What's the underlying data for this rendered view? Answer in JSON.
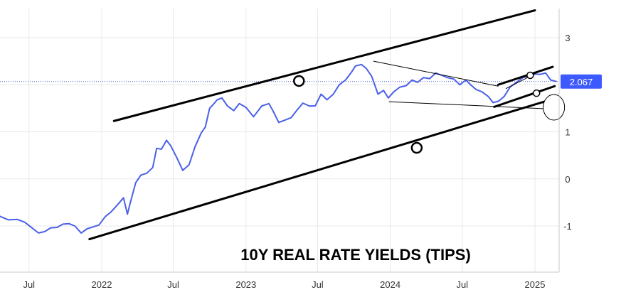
{
  "chart_data": {
    "type": "line",
    "title": "10Y REAL RATE YIELDS (TIPS)",
    "xlabel": "",
    "ylabel": "",
    "x_range": [
      "2021-04-01",
      "2025-03-01"
    ],
    "ylim": [
      -2.0,
      3.5
    ],
    "grid": true,
    "y_axis_position": "right",
    "x_ticks": [
      {
        "date": "2021-07-01",
        "label": "Jul"
      },
      {
        "date": "2022-01-01",
        "label": "2022"
      },
      {
        "date": "2022-07-01",
        "label": "Jul"
      },
      {
        "date": "2023-01-01",
        "label": "2023"
      },
      {
        "date": "2023-07-01",
        "label": "Jul"
      },
      {
        "date": "2024-01-01",
        "label": "2024"
      },
      {
        "date": "2024-07-01",
        "label": "Jul"
      },
      {
        "date": "2025-01-01",
        "label": "2025"
      }
    ],
    "y_ticks": [
      {
        "value": 3,
        "label": "3"
      },
      {
        "value": 2,
        "label": "2"
      },
      {
        "value": 1,
        "label": "1"
      },
      {
        "value": 0,
        "label": "0"
      },
      {
        "value": -1,
        "label": "-1"
      }
    ],
    "last_value": {
      "value": 2.067,
      "label": "2.067"
    },
    "colors": {
      "series": "#4a60e8",
      "badge": "#3d5afe",
      "trendline": "#000000",
      "grid": "#e8e8e8"
    },
    "series": [
      {
        "x": [
          "2021-04-01",
          "2021-04-20",
          "2021-05-10",
          "2021-06-01",
          "2021-06-20",
          "2021-07-10",
          "2021-07-25",
          "2021-08-10",
          "2021-08-25",
          "2021-09-10",
          "2021-09-25",
          "2021-10-10",
          "2021-10-25",
          "2021-11-10",
          "2021-11-25",
          "2021-12-10",
          "2021-12-25",
          "2022-01-10",
          "2022-01-25",
          "2022-02-10",
          "2022-02-25",
          "2022-03-07",
          "2022-03-15",
          "2022-03-28",
          "2022-04-10",
          "2022-04-25",
          "2022-05-10",
          "2022-05-20",
          "2022-06-01",
          "2022-06-14",
          "2022-06-25",
          "2022-07-10",
          "2022-07-25",
          "2022-08-10",
          "2022-08-25",
          "2022-09-10",
          "2022-09-20",
          "2022-10-01",
          "2022-10-10",
          "2022-10-20",
          "2022-11-01",
          "2022-11-15",
          "2022-12-01",
          "2022-12-15",
          "2023-01-01",
          "2023-01-20",
          "2023-02-10",
          "2023-02-28",
          "2023-03-10",
          "2023-03-25",
          "2023-04-10",
          "2023-04-25",
          "2023-05-10",
          "2023-05-25",
          "2023-06-10",
          "2023-06-25",
          "2023-07-10",
          "2023-07-25",
          "2023-08-10",
          "2023-08-25",
          "2023-09-10",
          "2023-09-25",
          "2023-10-05",
          "2023-10-20",
          "2023-11-01",
          "2023-11-15",
          "2023-12-01",
          "2023-12-15",
          "2023-12-27",
          "2024-01-10",
          "2024-01-25",
          "2024-02-10",
          "2024-02-25",
          "2024-03-10",
          "2024-03-25",
          "2024-04-10",
          "2024-04-25",
          "2024-05-10",
          "2024-05-25",
          "2024-06-10",
          "2024-06-25",
          "2024-07-10",
          "2024-07-25",
          "2024-08-05",
          "2024-08-20",
          "2024-09-05",
          "2024-09-17",
          "2024-10-01",
          "2024-10-15",
          "2024-10-30",
          "2024-11-15",
          "2024-12-01",
          "2024-12-15",
          "2025-01-01",
          "2025-01-14",
          "2025-01-28",
          "2025-02-10",
          "2025-02-25"
        ],
        "y": [
          -0.72,
          -0.8,
          -0.87,
          -0.86,
          -0.92,
          -1.05,
          -1.15,
          -1.12,
          -1.04,
          -1.03,
          -0.96,
          -0.95,
          -1.0,
          -1.15,
          -1.06,
          -1.02,
          -0.98,
          -0.8,
          -0.7,
          -0.55,
          -0.4,
          -0.75,
          -0.48,
          -0.08,
          0.08,
          0.12,
          0.24,
          0.65,
          0.63,
          0.82,
          0.7,
          0.45,
          0.18,
          0.3,
          0.68,
          0.98,
          1.1,
          1.5,
          1.58,
          1.68,
          1.72,
          1.55,
          1.45,
          1.6,
          1.52,
          1.32,
          1.55,
          1.6,
          1.45,
          1.2,
          1.25,
          1.3,
          1.46,
          1.61,
          1.55,
          1.55,
          1.8,
          1.68,
          1.8,
          2.0,
          2.1,
          2.27,
          2.4,
          2.43,
          2.35,
          2.18,
          1.8,
          1.88,
          1.72,
          1.85,
          1.95,
          1.98,
          2.1,
          2.05,
          2.15,
          2.13,
          2.25,
          2.2,
          2.15,
          2.12,
          2.0,
          2.1,
          1.98,
          1.9,
          1.85,
          1.75,
          1.62,
          1.65,
          1.75,
          1.95,
          2.05,
          2.15,
          2.18,
          2.23,
          2.22,
          2.25,
          2.1,
          2.067
        ]
      }
    ],
    "trend_lines": [
      {
        "from": {
          "date": "2022-02-01",
          "value": 1.23
        },
        "to": {
          "date": "2025-01-01",
          "value": 3.58
        },
        "weight": "thick"
      },
      {
        "from": {
          "date": "2021-12-01",
          "value": -1.28
        },
        "to": {
          "date": "2025-03-01",
          "value": 1.73
        },
        "weight": "thick"
      },
      {
        "from": {
          "date": "2023-11-20",
          "value": 2.5
        },
        "to": {
          "date": "2024-09-30",
          "value": 1.97
        },
        "weight": "thin"
      },
      {
        "from": {
          "date": "2023-12-29",
          "value": 1.64
        },
        "to": {
          "date": "2025-02-25",
          "value": 1.48
        },
        "weight": "thin"
      },
      {
        "from": {
          "date": "2024-09-30",
          "value": 2.0
        },
        "to": {
          "date": "2025-02-15",
          "value": 2.38
        },
        "weight": "thick"
      },
      {
        "from": {
          "date": "2024-09-20",
          "value": 1.53
        },
        "to": {
          "date": "2025-02-20",
          "value": 1.97
        },
        "weight": "thick"
      },
      {
        "from": {
          "date": "2024-10-20",
          "value": 1.92
        },
        "to": {
          "date": "2025-01-05",
          "value": 2.25
        },
        "weight": "thin"
      }
    ],
    "markers": [
      {
        "date": "2023-05-15",
        "value": 2.08,
        "shape": "circle",
        "size": "large"
      },
      {
        "date": "2024-03-08",
        "value": 0.66,
        "shape": "circle",
        "size": "large"
      },
      {
        "date": "2024-12-20",
        "value": 2.2,
        "shape": "circle",
        "size": "small"
      },
      {
        "date": "2025-01-05",
        "value": 1.82,
        "shape": "circle",
        "size": "small"
      },
      {
        "date": "2025-02-18",
        "value": 1.52,
        "shape": "ellipse",
        "size": "large"
      }
    ]
  }
}
